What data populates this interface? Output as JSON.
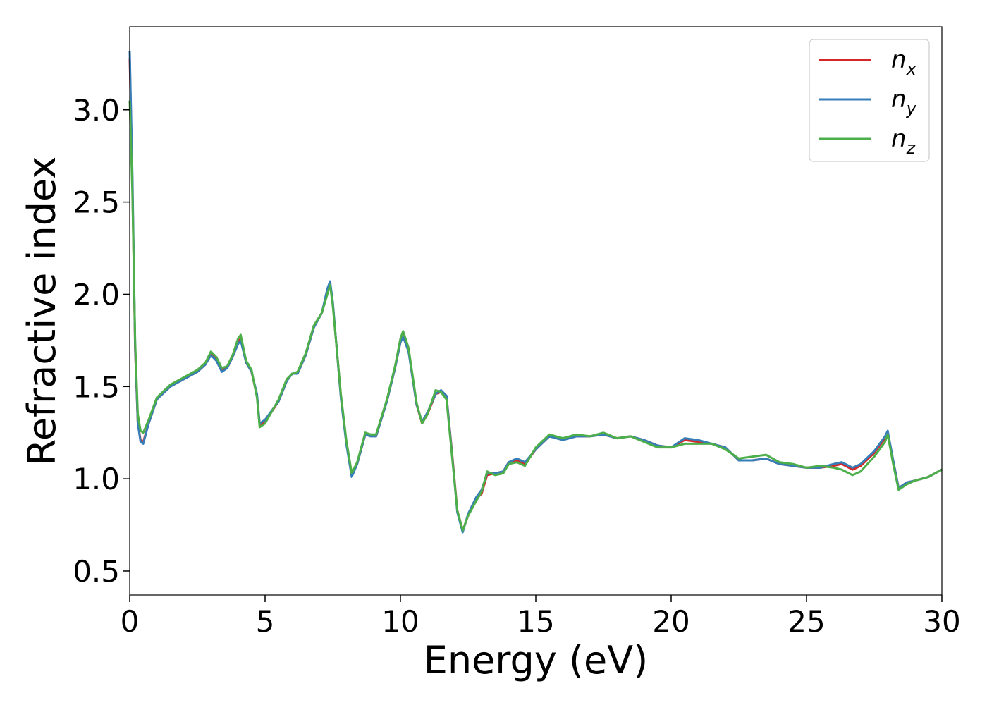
{
  "chart_data": {
    "type": "line",
    "xlabel": "Energy (eV)",
    "ylabel": "Refractive index",
    "xlim": [
      0,
      30
    ],
    "ylim": [
      0.37,
      3.45
    ],
    "xticks": [
      "0",
      "5",
      "10",
      "15",
      "20",
      "25",
      "30"
    ],
    "xtick_values": [
      0,
      5,
      10,
      15,
      20,
      25,
      30
    ],
    "yticks": [
      "0.5",
      "1.0",
      "1.5",
      "2.0",
      "2.5",
      "3.0"
    ],
    "ytick_values": [
      0.5,
      1.0,
      1.5,
      2.0,
      2.5,
      3.0
    ],
    "grid": false,
    "legend_position": "top-right",
    "series": [
      {
        "name": "n_x",
        "label_base": "n",
        "label_sub": "x",
        "color": "#d62728",
        "points": [
          [
            0.0,
            3.28
          ],
          [
            0.1,
            2.6
          ],
          [
            0.2,
            1.7
          ],
          [
            0.3,
            1.3
          ],
          [
            0.4,
            1.21
          ],
          [
            0.5,
            1.2
          ],
          [
            0.7,
            1.3
          ],
          [
            1.0,
            1.43
          ],
          [
            1.5,
            1.5
          ],
          [
            2.0,
            1.54
          ],
          [
            2.5,
            1.58
          ],
          [
            2.8,
            1.62
          ],
          [
            3.0,
            1.68
          ],
          [
            3.2,
            1.65
          ],
          [
            3.4,
            1.59
          ],
          [
            3.6,
            1.6
          ],
          [
            3.8,
            1.66
          ],
          [
            4.0,
            1.74
          ],
          [
            4.1,
            1.76
          ],
          [
            4.3,
            1.63
          ],
          [
            4.5,
            1.58
          ],
          [
            4.7,
            1.45
          ],
          [
            4.8,
            1.29
          ],
          [
            5.0,
            1.31
          ],
          [
            5.5,
            1.42
          ],
          [
            5.8,
            1.53
          ],
          [
            6.0,
            1.57
          ],
          [
            6.2,
            1.57
          ],
          [
            6.5,
            1.67
          ],
          [
            6.8,
            1.82
          ],
          [
            7.1,
            1.9
          ],
          [
            7.3,
            2.02
          ],
          [
            7.4,
            2.06
          ],
          [
            7.5,
            1.95
          ],
          [
            7.8,
            1.45
          ],
          [
            8.0,
            1.2
          ],
          [
            8.2,
            1.02
          ],
          [
            8.4,
            1.08
          ],
          [
            8.7,
            1.24
          ],
          [
            8.9,
            1.24
          ],
          [
            9.1,
            1.23
          ],
          [
            9.5,
            1.42
          ],
          [
            9.8,
            1.6
          ],
          [
            10.0,
            1.74
          ],
          [
            10.1,
            1.78
          ],
          [
            10.3,
            1.7
          ],
          [
            10.6,
            1.4
          ],
          [
            10.8,
            1.3
          ],
          [
            11.0,
            1.35
          ],
          [
            11.3,
            1.46
          ],
          [
            11.5,
            1.47
          ],
          [
            11.7,
            1.45
          ],
          [
            11.9,
            1.15
          ],
          [
            12.1,
            0.83
          ],
          [
            12.3,
            0.72
          ],
          [
            12.5,
            0.8
          ],
          [
            12.8,
            0.89
          ],
          [
            13.0,
            0.92
          ],
          [
            13.2,
            1.02
          ],
          [
            13.5,
            1.03
          ],
          [
            13.8,
            1.04
          ],
          [
            14.0,
            1.09
          ],
          [
            14.3,
            1.1
          ],
          [
            14.6,
            1.08
          ],
          [
            15.0,
            1.16
          ],
          [
            15.5,
            1.23
          ],
          [
            16.0,
            1.22
          ],
          [
            16.5,
            1.23
          ],
          [
            17.0,
            1.23
          ],
          [
            17.5,
            1.24
          ],
          [
            18.0,
            1.22
          ],
          [
            18.5,
            1.23
          ],
          [
            19.0,
            1.21
          ],
          [
            19.5,
            1.18
          ],
          [
            20.0,
            1.17
          ],
          [
            20.5,
            1.21
          ],
          [
            21.0,
            1.2
          ],
          [
            21.5,
            1.19
          ],
          [
            22.0,
            1.17
          ],
          [
            22.5,
            1.1
          ],
          [
            23.0,
            1.1
          ],
          [
            23.5,
            1.11
          ],
          [
            24.0,
            1.08
          ],
          [
            24.5,
            1.07
          ],
          [
            25.0,
            1.06
          ],
          [
            25.5,
            1.06
          ],
          [
            26.0,
            1.07
          ],
          [
            26.3,
            1.08
          ],
          [
            26.7,
            1.05
          ],
          [
            27.0,
            1.07
          ],
          [
            27.5,
            1.14
          ],
          [
            27.9,
            1.22
          ],
          [
            28.0,
            1.25
          ],
          [
            28.2,
            1.1
          ],
          [
            28.4,
            0.95
          ],
          [
            28.7,
            0.98
          ],
          [
            29.0,
            0.99
          ],
          [
            29.5,
            1.01
          ],
          [
            30.0,
            1.05
          ]
        ]
      },
      {
        "name": "n_y",
        "label_base": "n",
        "label_sub": "y",
        "color": "#377eb8",
        "points": [
          [
            0.0,
            3.32
          ],
          [
            0.1,
            2.65
          ],
          [
            0.2,
            1.72
          ],
          [
            0.3,
            1.3
          ],
          [
            0.4,
            1.2
          ],
          [
            0.5,
            1.19
          ],
          [
            0.7,
            1.3
          ],
          [
            1.0,
            1.43
          ],
          [
            1.5,
            1.5
          ],
          [
            2.0,
            1.54
          ],
          [
            2.5,
            1.58
          ],
          [
            2.8,
            1.62
          ],
          [
            3.0,
            1.67
          ],
          [
            3.2,
            1.64
          ],
          [
            3.4,
            1.58
          ],
          [
            3.6,
            1.6
          ],
          [
            3.8,
            1.66
          ],
          [
            4.0,
            1.73
          ],
          [
            4.1,
            1.75
          ],
          [
            4.3,
            1.63
          ],
          [
            4.5,
            1.58
          ],
          [
            4.7,
            1.46
          ],
          [
            4.8,
            1.3
          ],
          [
            5.0,
            1.32
          ],
          [
            5.5,
            1.42
          ],
          [
            5.8,
            1.53
          ],
          [
            6.0,
            1.57
          ],
          [
            6.2,
            1.57
          ],
          [
            6.5,
            1.67
          ],
          [
            6.8,
            1.82
          ],
          [
            7.1,
            1.9
          ],
          [
            7.3,
            2.03
          ],
          [
            7.4,
            2.07
          ],
          [
            7.5,
            1.96
          ],
          [
            7.8,
            1.44
          ],
          [
            8.0,
            1.19
          ],
          [
            8.2,
            1.01
          ],
          [
            8.4,
            1.08
          ],
          [
            8.7,
            1.24
          ],
          [
            8.9,
            1.23
          ],
          [
            9.1,
            1.23
          ],
          [
            9.5,
            1.42
          ],
          [
            9.8,
            1.6
          ],
          [
            10.0,
            1.74
          ],
          [
            10.1,
            1.77
          ],
          [
            10.3,
            1.69
          ],
          [
            10.6,
            1.4
          ],
          [
            10.8,
            1.31
          ],
          [
            11.0,
            1.36
          ],
          [
            11.3,
            1.46
          ],
          [
            11.5,
            1.48
          ],
          [
            11.7,
            1.45
          ],
          [
            11.9,
            1.14
          ],
          [
            12.1,
            0.82
          ],
          [
            12.3,
            0.71
          ],
          [
            12.5,
            0.81
          ],
          [
            12.8,
            0.9
          ],
          [
            13.0,
            0.94
          ],
          [
            13.2,
            1.03
          ],
          [
            13.5,
            1.03
          ],
          [
            13.8,
            1.04
          ],
          [
            14.0,
            1.09
          ],
          [
            14.3,
            1.11
          ],
          [
            14.6,
            1.09
          ],
          [
            15.0,
            1.16
          ],
          [
            15.5,
            1.23
          ],
          [
            16.0,
            1.21
          ],
          [
            16.5,
            1.23
          ],
          [
            17.0,
            1.23
          ],
          [
            17.5,
            1.24
          ],
          [
            18.0,
            1.22
          ],
          [
            18.5,
            1.23
          ],
          [
            19.0,
            1.21
          ],
          [
            19.5,
            1.18
          ],
          [
            20.0,
            1.17
          ],
          [
            20.5,
            1.22
          ],
          [
            21.0,
            1.21
          ],
          [
            21.5,
            1.19
          ],
          [
            22.0,
            1.17
          ],
          [
            22.5,
            1.1
          ],
          [
            23.0,
            1.1
          ],
          [
            23.5,
            1.11
          ],
          [
            24.0,
            1.08
          ],
          [
            24.5,
            1.07
          ],
          [
            25.0,
            1.06
          ],
          [
            25.5,
            1.06
          ],
          [
            26.0,
            1.08
          ],
          [
            26.3,
            1.09
          ],
          [
            26.7,
            1.06
          ],
          [
            27.0,
            1.08
          ],
          [
            27.5,
            1.15
          ],
          [
            27.9,
            1.23
          ],
          [
            28.0,
            1.26
          ],
          [
            28.2,
            1.1
          ],
          [
            28.4,
            0.95
          ],
          [
            28.7,
            0.98
          ],
          [
            29.0,
            0.99
          ],
          [
            29.5,
            1.01
          ],
          [
            30.0,
            1.05
          ]
        ]
      },
      {
        "name": "n_z",
        "label_base": "n",
        "label_sub": "z",
        "color": "#4daf4a",
        "points": [
          [
            0.0,
            3.05
          ],
          [
            0.1,
            2.55
          ],
          [
            0.2,
            1.75
          ],
          [
            0.3,
            1.35
          ],
          [
            0.4,
            1.26
          ],
          [
            0.5,
            1.25
          ],
          [
            0.7,
            1.32
          ],
          [
            1.0,
            1.44
          ],
          [
            1.5,
            1.51
          ],
          [
            2.0,
            1.55
          ],
          [
            2.5,
            1.59
          ],
          [
            2.8,
            1.63
          ],
          [
            3.0,
            1.69
          ],
          [
            3.2,
            1.66
          ],
          [
            3.4,
            1.6
          ],
          [
            3.6,
            1.61
          ],
          [
            3.8,
            1.67
          ],
          [
            4.0,
            1.76
          ],
          [
            4.1,
            1.78
          ],
          [
            4.3,
            1.64
          ],
          [
            4.5,
            1.59
          ],
          [
            4.7,
            1.44
          ],
          [
            4.8,
            1.28
          ],
          [
            5.0,
            1.3
          ],
          [
            5.5,
            1.43
          ],
          [
            5.8,
            1.54
          ],
          [
            6.0,
            1.57
          ],
          [
            6.2,
            1.58
          ],
          [
            6.5,
            1.68
          ],
          [
            6.8,
            1.83
          ],
          [
            7.1,
            1.9
          ],
          [
            7.3,
            2.0
          ],
          [
            7.4,
            2.05
          ],
          [
            7.5,
            1.94
          ],
          [
            7.8,
            1.46
          ],
          [
            8.0,
            1.21
          ],
          [
            8.2,
            1.03
          ],
          [
            8.4,
            1.09
          ],
          [
            8.7,
            1.25
          ],
          [
            8.9,
            1.24
          ],
          [
            9.1,
            1.24
          ],
          [
            9.5,
            1.43
          ],
          [
            9.8,
            1.61
          ],
          [
            10.0,
            1.76
          ],
          [
            10.1,
            1.8
          ],
          [
            10.3,
            1.71
          ],
          [
            10.6,
            1.41
          ],
          [
            10.8,
            1.3
          ],
          [
            11.0,
            1.35
          ],
          [
            11.3,
            1.48
          ],
          [
            11.5,
            1.47
          ],
          [
            11.7,
            1.43
          ],
          [
            11.9,
            1.13
          ],
          [
            12.1,
            0.83
          ],
          [
            12.3,
            0.72
          ],
          [
            12.5,
            0.8
          ],
          [
            12.8,
            0.88
          ],
          [
            13.0,
            0.93
          ],
          [
            13.2,
            1.04
          ],
          [
            13.5,
            1.02
          ],
          [
            13.8,
            1.03
          ],
          [
            14.0,
            1.08
          ],
          [
            14.3,
            1.09
          ],
          [
            14.6,
            1.07
          ],
          [
            15.0,
            1.17
          ],
          [
            15.5,
            1.24
          ],
          [
            16.0,
            1.22
          ],
          [
            16.5,
            1.24
          ],
          [
            17.0,
            1.23
          ],
          [
            17.5,
            1.25
          ],
          [
            18.0,
            1.22
          ],
          [
            18.5,
            1.23
          ],
          [
            19.0,
            1.2
          ],
          [
            19.5,
            1.17
          ],
          [
            20.0,
            1.17
          ],
          [
            20.5,
            1.19
          ],
          [
            21.0,
            1.19
          ],
          [
            21.5,
            1.19
          ],
          [
            22.0,
            1.16
          ],
          [
            22.5,
            1.11
          ],
          [
            23.0,
            1.12
          ],
          [
            23.5,
            1.13
          ],
          [
            24.0,
            1.09
          ],
          [
            24.5,
            1.08
          ],
          [
            25.0,
            1.06
          ],
          [
            25.5,
            1.07
          ],
          [
            26.0,
            1.06
          ],
          [
            26.3,
            1.05
          ],
          [
            26.7,
            1.02
          ],
          [
            27.0,
            1.04
          ],
          [
            27.5,
            1.12
          ],
          [
            27.9,
            1.2
          ],
          [
            28.0,
            1.24
          ],
          [
            28.2,
            1.08
          ],
          [
            28.4,
            0.94
          ],
          [
            28.7,
            0.97
          ],
          [
            29.0,
            0.99
          ],
          [
            29.5,
            1.01
          ],
          [
            30.0,
            1.05
          ]
        ]
      }
    ]
  }
}
